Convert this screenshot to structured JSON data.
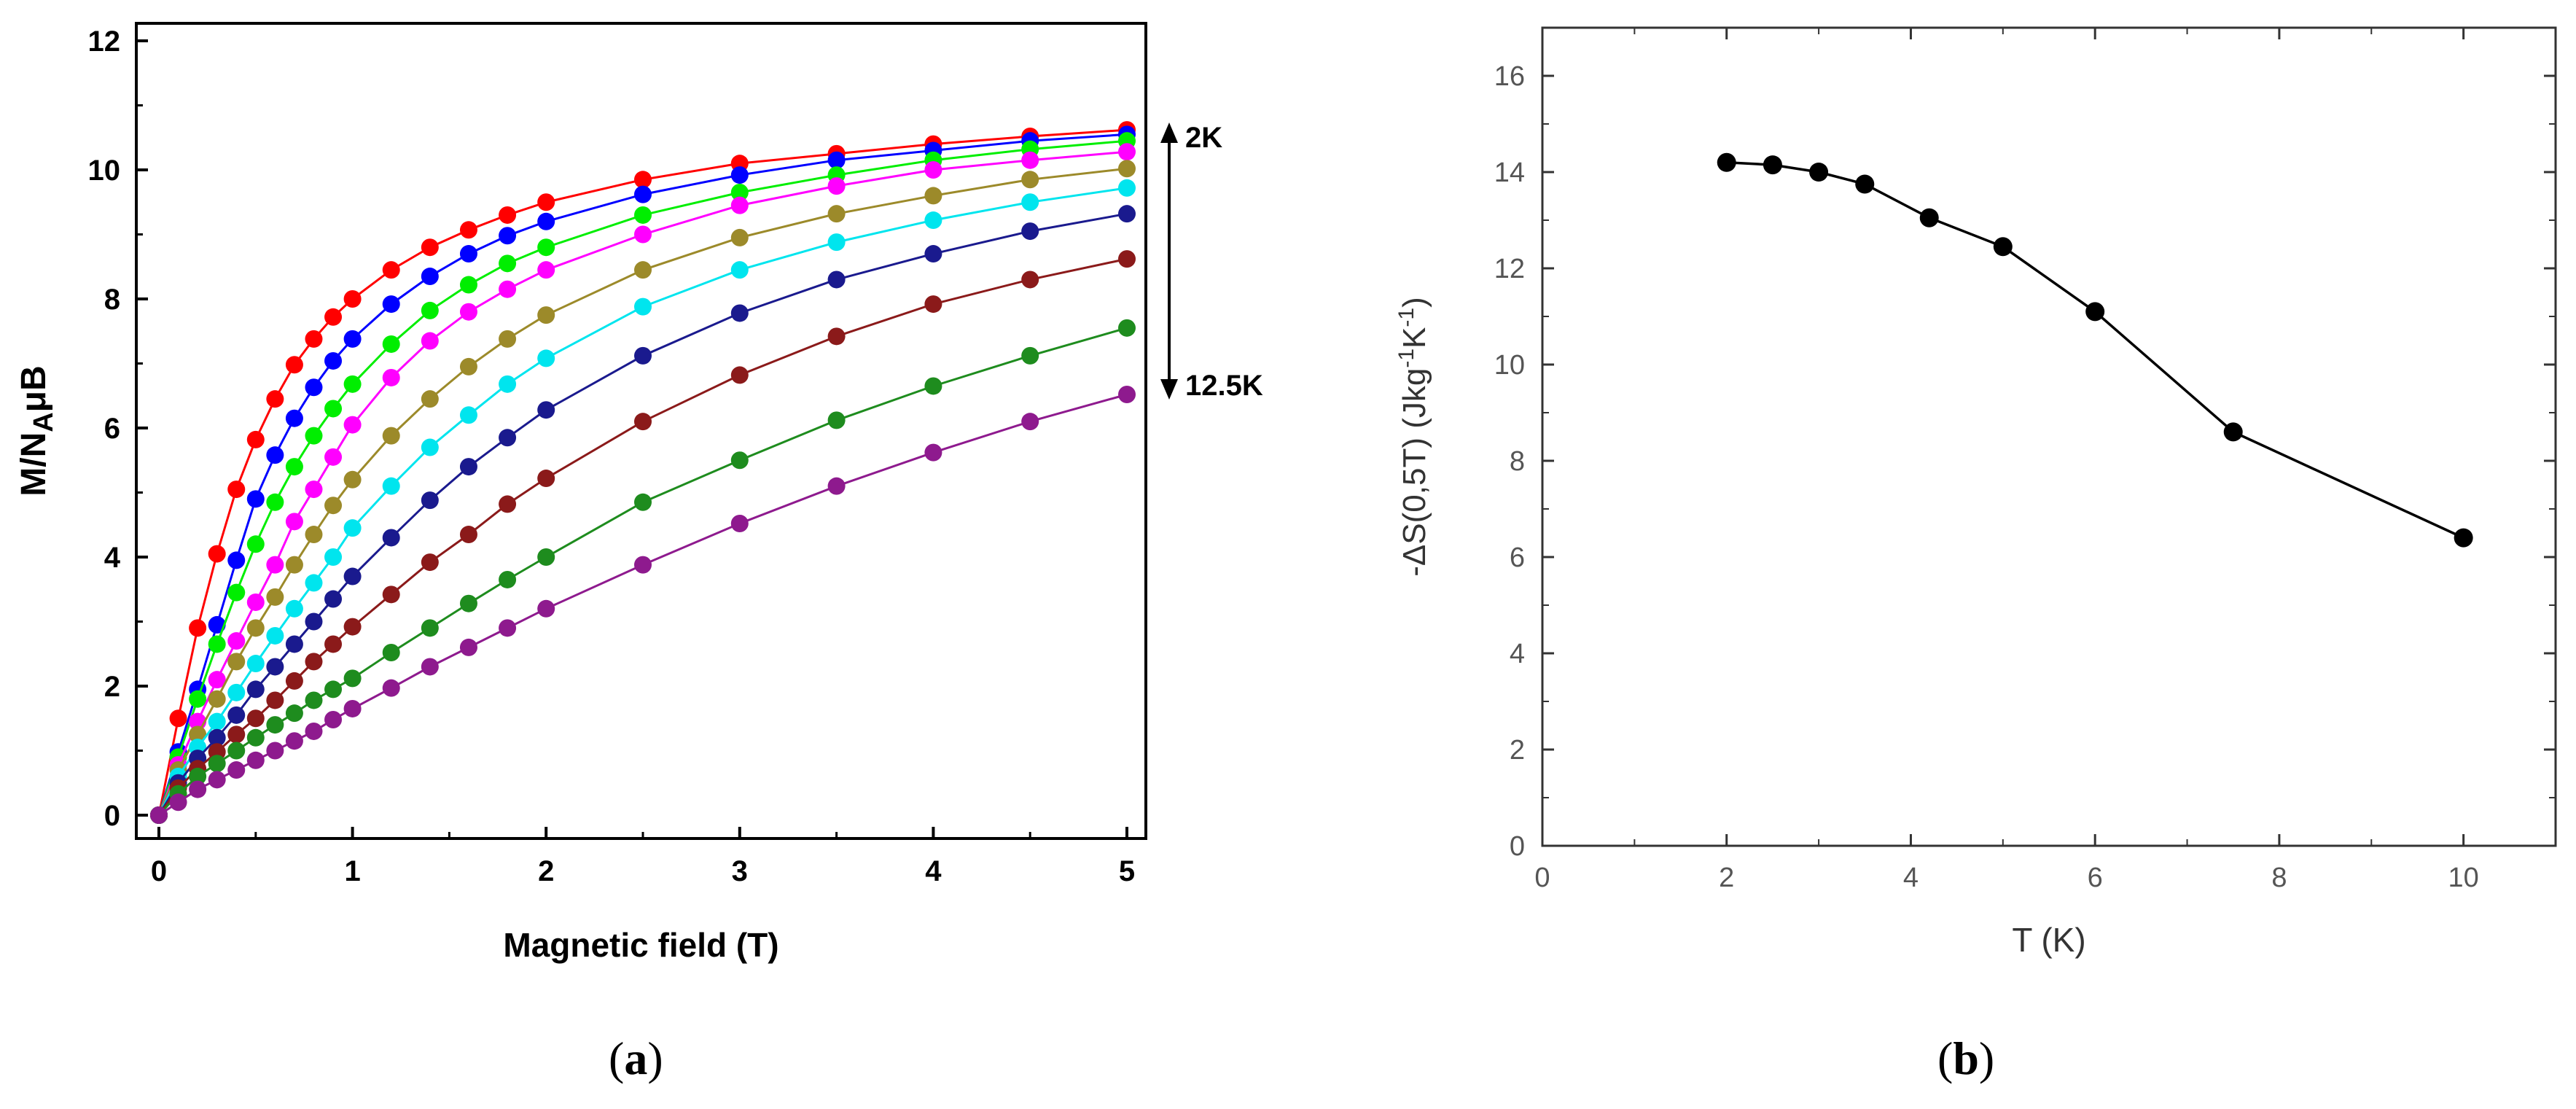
{
  "figure": {
    "panel_a_label": {
      "open": "(",
      "letter": "a",
      "close": ")"
    },
    "panel_b_label": {
      "open": "(",
      "letter": "b",
      "close": ")"
    }
  },
  "chart_data": [
    {
      "id": "a",
      "type": "line",
      "title": "",
      "xlabel": "Magnetic field (T)",
      "ylabel": "M/NAμB",
      "ylabel_parts": {
        "main": "M/N",
        "sub": "A",
        "mu": "μ",
        "tail": "B"
      },
      "xlim": [
        0,
        5
      ],
      "ylim": [
        0,
        12
      ],
      "xticks": [
        0,
        1,
        2,
        3,
        4,
        5
      ],
      "yticks": [
        0,
        2,
        4,
        6,
        8,
        10,
        12
      ],
      "grid": false,
      "x": [
        0,
        0.1,
        0.2,
        0.3,
        0.4,
        0.5,
        0.6,
        0.7,
        0.8,
        0.9,
        1.0,
        1.2,
        1.4,
        1.6,
        1.8,
        2.0,
        2.5,
        3.0,
        3.5,
        4.0,
        4.5,
        5.0
      ],
      "series": [
        {
          "name": "2K",
          "color": "#ff0000",
          "values": [
            0,
            1.5,
            2.9,
            4.05,
            5.05,
            5.82,
            6.45,
            6.98,
            7.38,
            7.72,
            8.0,
            8.45,
            8.8,
            9.07,
            9.3,
            9.5,
            9.85,
            10.1,
            10.25,
            10.4,
            10.52,
            10.62
          ]
        },
        {
          "name": "",
          "color": "#0000ff",
          "values": [
            0,
            0.98,
            1.95,
            2.95,
            3.95,
            4.9,
            5.58,
            6.15,
            6.63,
            7.04,
            7.38,
            7.92,
            8.35,
            8.7,
            8.98,
            9.2,
            9.62,
            9.92,
            10.15,
            10.3,
            10.45,
            10.55
          ]
        },
        {
          "name": "",
          "color": "#00ee00",
          "values": [
            0,
            0.9,
            1.8,
            2.65,
            3.45,
            4.2,
            4.85,
            5.4,
            5.88,
            6.3,
            6.68,
            7.3,
            7.82,
            8.22,
            8.55,
            8.8,
            9.3,
            9.65,
            9.92,
            10.15,
            10.32,
            10.45
          ]
        },
        {
          "name": "",
          "color": "#ff00ff",
          "values": [
            0,
            0.78,
            1.45,
            2.1,
            2.7,
            3.3,
            3.88,
            4.55,
            5.05,
            5.55,
            6.05,
            6.78,
            7.35,
            7.8,
            8.15,
            8.45,
            9.0,
            9.45,
            9.75,
            10.0,
            10.15,
            10.28
          ]
        },
        {
          "name": "",
          "color": "#9c8a2a",
          "values": [
            0,
            0.7,
            1.25,
            1.8,
            2.38,
            2.9,
            3.38,
            3.88,
            4.35,
            4.8,
            5.2,
            5.88,
            6.45,
            6.95,
            7.38,
            7.75,
            8.45,
            8.95,
            9.32,
            9.6,
            9.85,
            10.02
          ]
        },
        {
          "name": "",
          "color": "#00e5ee",
          "values": [
            0,
            0.6,
            1.05,
            1.45,
            1.9,
            2.35,
            2.78,
            3.2,
            3.6,
            4.0,
            4.45,
            5.1,
            5.7,
            6.2,
            6.68,
            7.08,
            7.88,
            8.45,
            8.88,
            9.22,
            9.5,
            9.72
          ]
        },
        {
          "name": "",
          "color": "#1a1a8e",
          "values": [
            0,
            0.5,
            0.88,
            1.2,
            1.55,
            1.95,
            2.3,
            2.65,
            3.0,
            3.35,
            3.7,
            4.3,
            4.88,
            5.4,
            5.85,
            6.28,
            7.12,
            7.78,
            8.3,
            8.7,
            9.05,
            9.32
          ]
        },
        {
          "name": "",
          "color": "#8b1a1a",
          "values": [
            0,
            0.42,
            0.72,
            0.98,
            1.25,
            1.5,
            1.78,
            2.08,
            2.38,
            2.65,
            2.92,
            3.42,
            3.92,
            4.35,
            4.82,
            5.22,
            6.1,
            6.82,
            7.42,
            7.92,
            8.3,
            8.62
          ]
        },
        {
          "name": "",
          "color": "#1e8c1e",
          "values": [
            0,
            0.33,
            0.6,
            0.8,
            1.0,
            1.2,
            1.4,
            1.58,
            1.78,
            1.95,
            2.12,
            2.52,
            2.9,
            3.28,
            3.65,
            4.0,
            4.85,
            5.5,
            6.12,
            6.65,
            7.12,
            7.55
          ]
        },
        {
          "name": "12.5K",
          "color": "#8e1a8e",
          "values": [
            0,
            0.2,
            0.4,
            0.55,
            0.7,
            0.85,
            1.0,
            1.15,
            1.3,
            1.48,
            1.65,
            1.97,
            2.3,
            2.6,
            2.9,
            3.2,
            3.88,
            4.52,
            5.1,
            5.62,
            6.1,
            6.52
          ]
        }
      ],
      "annotations": [
        {
          "text": "2K",
          "position": "right-top"
        },
        {
          "text": "12.5K",
          "position": "right-middle"
        }
      ]
    },
    {
      "id": "b",
      "type": "line",
      "title": "",
      "xlabel": "T (K)",
      "ylabel": "-ΔS(0,5T)  (Jkg-1K-1)",
      "ylabel_parts": {
        "main": "-ΔS(0,5T)  (Jkg",
        "exp1": "-1",
        "mid": "K",
        "exp2": "-1",
        "close": ")"
      },
      "xlim": [
        0,
        11
      ],
      "ylim": [
        0,
        17
      ],
      "xticks": [
        0,
        2,
        4,
        6,
        8,
        10
      ],
      "yticks": [
        0,
        2,
        4,
        6,
        8,
        10,
        12,
        14,
        16
      ],
      "grid": false,
      "x": [
        2,
        2.5,
        3,
        3.5,
        4.2,
        5,
        6,
        7.5,
        10
      ],
      "series": [
        {
          "name": "-ΔS",
          "color": "#000000",
          "values": [
            14.2,
            14.15,
            14.0,
            13.75,
            13.05,
            12.45,
            11.1,
            8.6,
            6.4
          ]
        }
      ]
    }
  ]
}
